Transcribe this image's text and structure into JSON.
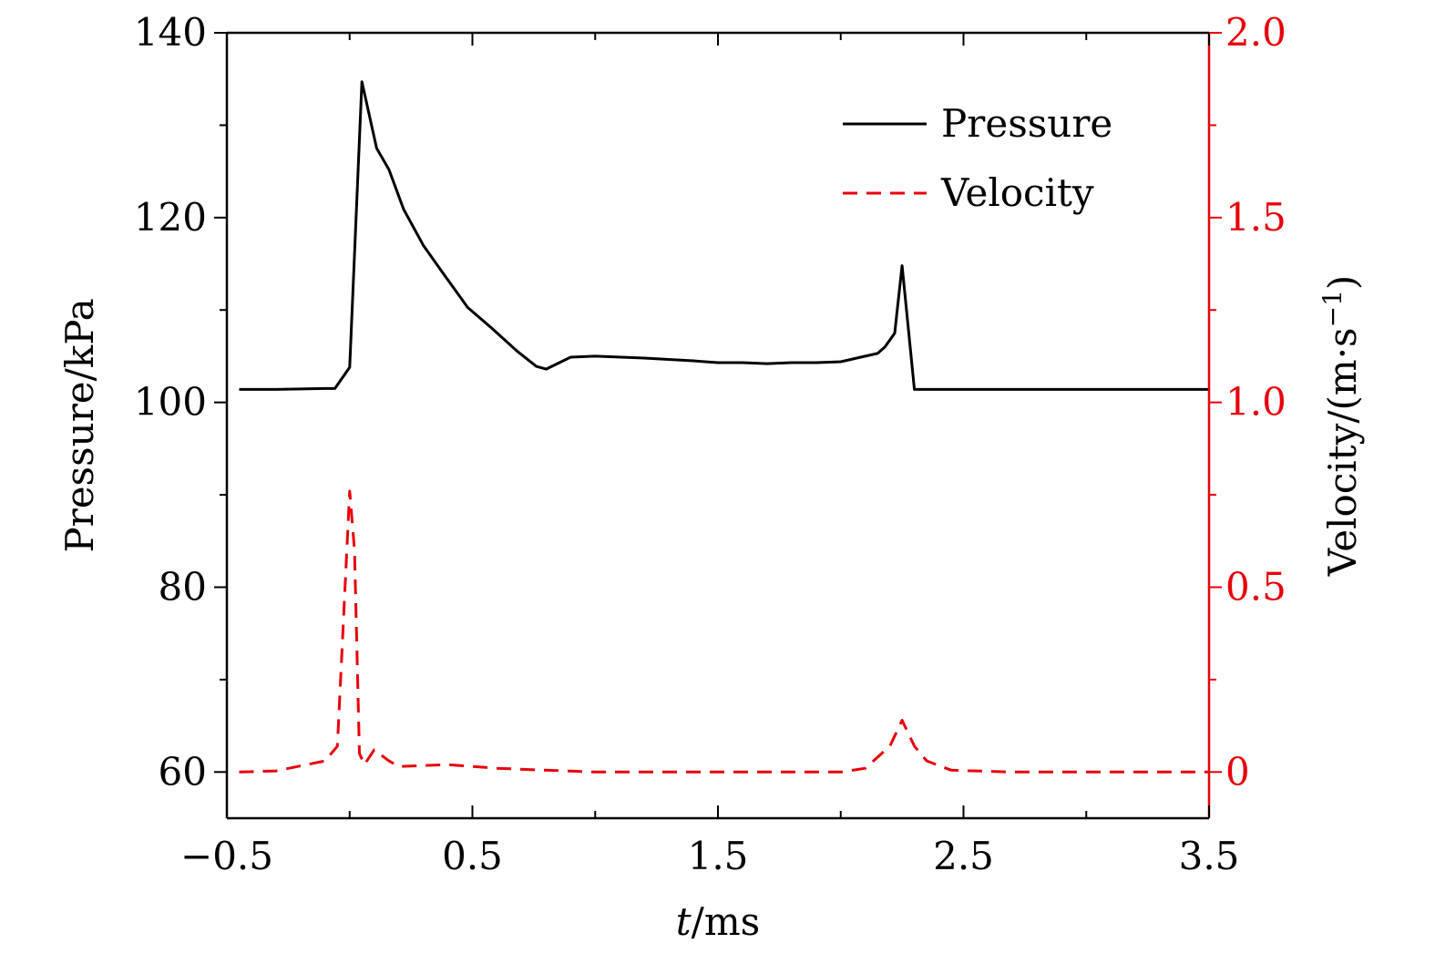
{
  "chart_data": {
    "type": "line",
    "x_axis": {
      "label_var": "t",
      "label_unit": "/ms",
      "range": [
        -0.5,
        3.5
      ],
      "ticks": [
        -0.5,
        0.5,
        1.5,
        2.5,
        3.5
      ],
      "tick_labels": [
        "−0.5",
        "0.5",
        "1.5",
        "2.5",
        "3.5"
      ],
      "minor_ticks": [
        0,
        1,
        2,
        3
      ]
    },
    "y_axis_left": {
      "label": "Pressure/kPa",
      "range": [
        55,
        140
      ],
      "ticks": [
        60,
        80,
        100,
        120,
        140
      ],
      "tick_labels": [
        "60",
        "80",
        "100",
        "120",
        "140"
      ],
      "minor_ticks": [
        70,
        90,
        110,
        130
      ],
      "color": "#000000"
    },
    "y_axis_right": {
      "label_main": "Velocity/(m·s",
      "label_sup": "−1",
      "label_close": ")",
      "range": [
        -0.125,
        2.0
      ],
      "ticks": [
        0,
        0.5,
        1.0,
        1.5,
        2.0
      ],
      "tick_labels": [
        "0",
        "0.5",
        "1.0",
        "1.5",
        "2.0"
      ],
      "minor_ticks": [
        0.25,
        0.75,
        1.25,
        1.75
      ],
      "color": "#e8000b"
    },
    "legend": {
      "position": "top-right",
      "entries": [
        {
          "name": "Pressure",
          "style": "solid",
          "color": "#000000"
        },
        {
          "name": "Velocity",
          "style": "dashed",
          "color": "#e8000b"
        }
      ]
    },
    "series": [
      {
        "name": "Pressure",
        "axis": "left",
        "color": "#000000",
        "style": "solid",
        "x": [
          -0.45,
          -0.3,
          -0.1,
          -0.06,
          0.0,
          0.05,
          0.11,
          0.16,
          0.22,
          0.3,
          0.38,
          0.48,
          0.58,
          0.68,
          0.76,
          0.8,
          0.9,
          1.0,
          1.2,
          1.4,
          1.5,
          1.6,
          1.7,
          1.8,
          1.9,
          2.0,
          2.1,
          2.15,
          2.18,
          2.22,
          2.25,
          2.3,
          2.5,
          3.0,
          3.5
        ],
        "y": [
          101.4,
          101.4,
          101.5,
          101.5,
          103.8,
          134.7,
          127.5,
          125.2,
          120.9,
          117.0,
          114.0,
          110.3,
          108.0,
          105.6,
          103.9,
          103.6,
          104.9,
          105.0,
          104.8,
          104.5,
          104.3,
          104.3,
          104.2,
          104.3,
          104.3,
          104.4,
          105.0,
          105.3,
          106.0,
          107.5,
          114.8,
          101.4,
          101.4,
          101.4,
          101.4
        ]
      },
      {
        "name": "Velocity",
        "axis": "right",
        "color": "#e8000b",
        "style": "dashed",
        "x": [
          -0.45,
          -0.3,
          -0.1,
          -0.05,
          0.0,
          0.02,
          0.04,
          0.06,
          0.08,
          0.1,
          0.16,
          0.2,
          0.4,
          0.6,
          0.8,
          1.0,
          1.5,
          2.0,
          2.1,
          2.2,
          2.25,
          2.3,
          2.35,
          2.45,
          2.7,
          3.0,
          3.5
        ],
        "y": [
          0.0,
          0.003,
          0.03,
          0.07,
          0.76,
          0.6,
          0.05,
          0.02,
          0.04,
          0.06,
          0.03,
          0.015,
          0.02,
          0.01,
          0.005,
          0.0,
          0.0,
          0.0,
          0.01,
          0.07,
          0.14,
          0.07,
          0.03,
          0.005,
          0.0,
          0.0,
          0.0
        ]
      }
    ]
  }
}
